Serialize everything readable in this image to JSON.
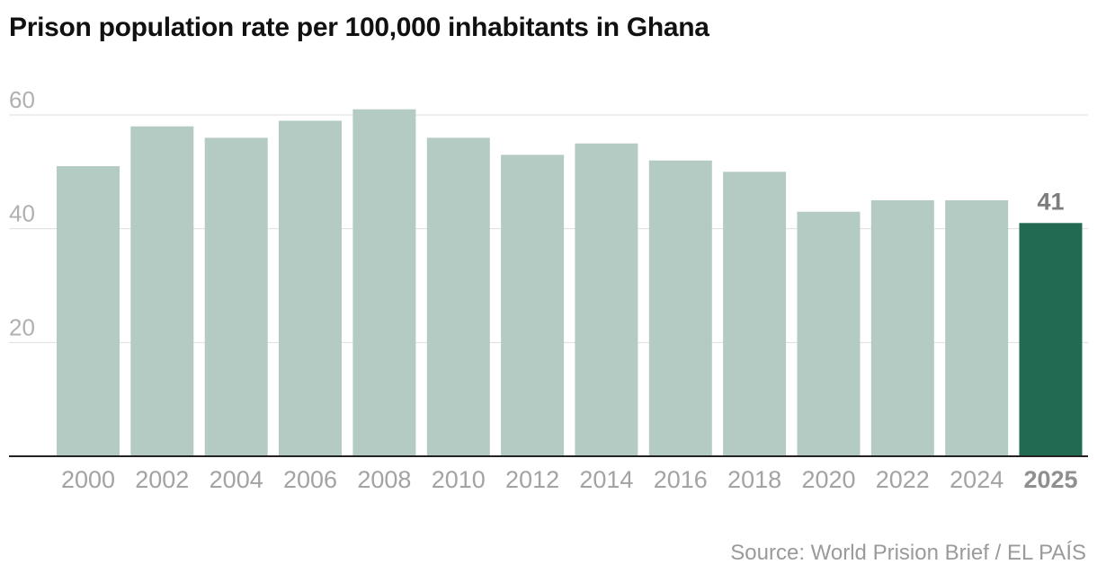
{
  "chart_data": {
    "type": "bar",
    "title": "Prison population rate per 100,000 inhabitants in Ghana",
    "xlabel": "",
    "ylabel": "",
    "categories": [
      "2000",
      "2002",
      "2004",
      "2006",
      "2008",
      "2010",
      "2012",
      "2014",
      "2016",
      "2018",
      "2020",
      "2022",
      "2024",
      "2025"
    ],
    "values": [
      51,
      58,
      56,
      59,
      61,
      56,
      53,
      55,
      52,
      50,
      43,
      45,
      45,
      41
    ],
    "ylim": [
      0,
      60
    ],
    "yticks": [
      20,
      40,
      60
    ],
    "highlight_index": 13,
    "highlight_label": "41",
    "grid": true,
    "colors": {
      "bar": "#b3cbc3",
      "highlight": "#226a52"
    },
    "source": "Source: World Prision Brief / EL PAÍS"
  }
}
